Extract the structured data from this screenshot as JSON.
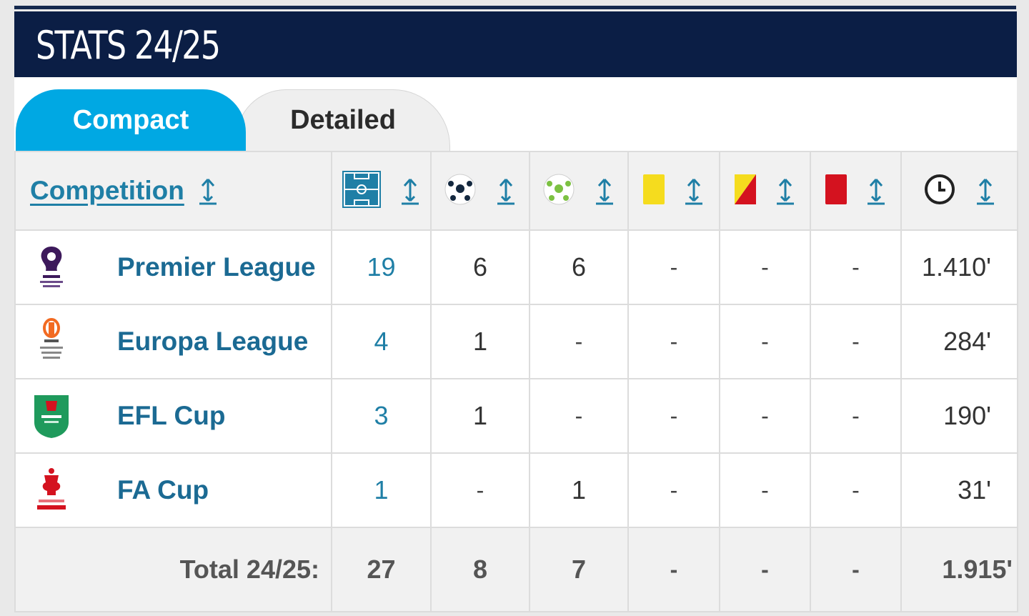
{
  "title": "STATS 24/25",
  "tabs": [
    {
      "label": "Compact",
      "active": true
    },
    {
      "label": "Detailed",
      "active": false
    }
  ],
  "table": {
    "competition_header": "Competition",
    "column_icons": [
      "pitch-icon",
      "goals-ball-icon",
      "assists-ball-icon",
      "yellow-card-icon",
      "yellow-red-card-icon",
      "red-card-icon",
      "clock-icon"
    ],
    "rows": [
      {
        "name": "Premier League",
        "logo": "premier-league-logo",
        "apps": "19",
        "goals": "6",
        "assists": "6",
        "yellow": "-",
        "yellow_red": "-",
        "red": "-",
        "minutes": "1.410'"
      },
      {
        "name": "Europa League",
        "logo": "europa-league-logo",
        "apps": "4",
        "goals": "1",
        "assists": "-",
        "yellow": "-",
        "yellow_red": "-",
        "red": "-",
        "minutes": "284'"
      },
      {
        "name": "EFL Cup",
        "logo": "efl-cup-logo",
        "apps": "3",
        "goals": "1",
        "assists": "-",
        "yellow": "-",
        "yellow_red": "-",
        "red": "-",
        "minutes": "190'"
      },
      {
        "name": "FA Cup",
        "logo": "fa-cup-logo",
        "apps": "1",
        "goals": "-",
        "assists": "1",
        "yellow": "-",
        "yellow_red": "-",
        "red": "-",
        "minutes": "31'"
      }
    ],
    "total": {
      "label": "Total 24/25:",
      "apps": "27",
      "goals": "8",
      "assists": "7",
      "yellow": "-",
      "yellow_red": "-",
      "red": "-",
      "minutes": "1.915'"
    }
  },
  "colors": {
    "header_bg": "#0b1e45",
    "tab_active": "#00a8e3",
    "link": "#1f7fa6",
    "yellow_card": "#f5dc1e",
    "red_card": "#d4121f"
  }
}
